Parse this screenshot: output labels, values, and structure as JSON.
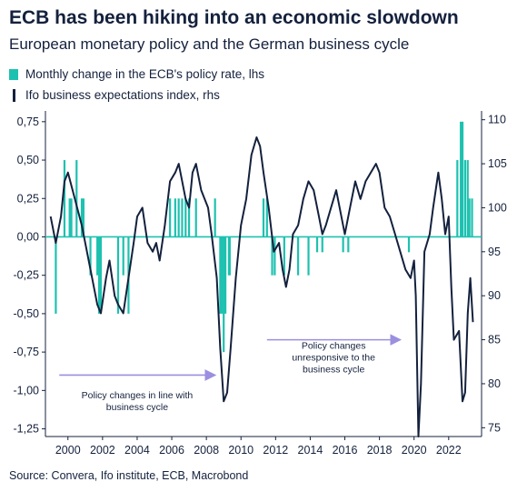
{
  "title": "ECB has been hiking into an economic slowdown",
  "subtitle": "European monetary policy and the German business cycle",
  "source": "Source: Convera, Ifo institute, ECB, Macrobond",
  "colors": {
    "bar": "#1ec1b0",
    "line": "#14213d",
    "arrow": "#9b8fe0"
  },
  "chart_data": {
    "type": "bar+line",
    "legend_placement": "top-left",
    "grid": false,
    "series": [
      {
        "name": "Monthly change in the ECB's policy rate, lhs",
        "type": "bar",
        "axis": "left",
        "points": [
          [
            1999.3,
            -0.5
          ],
          [
            1999.8,
            0.5
          ],
          [
            2000.1,
            0.25
          ],
          [
            2000.2,
            0.25
          ],
          [
            2000.5,
            0.5
          ],
          [
            2000.8,
            0.25
          ],
          [
            2000.9,
            0.25
          ],
          [
            2001.3,
            -0.25
          ],
          [
            2001.7,
            -0.25
          ],
          [
            2001.8,
            -0.5
          ],
          [
            2001.9,
            -0.5
          ],
          [
            2002.9,
            -0.5
          ],
          [
            2003.2,
            -0.25
          ],
          [
            2003.5,
            -0.5
          ],
          [
            2005.9,
            0.25
          ],
          [
            2006.2,
            0.25
          ],
          [
            2006.4,
            0.25
          ],
          [
            2006.6,
            0.25
          ],
          [
            2006.8,
            0.25
          ],
          [
            2007.0,
            0.25
          ],
          [
            2007.4,
            0.25
          ],
          [
            2008.5,
            0.25
          ],
          [
            2008.8,
            -0.5
          ],
          [
            2008.9,
            -0.5
          ],
          [
            2009.0,
            -0.75
          ],
          [
            2009.1,
            -0.5
          ],
          [
            2009.3,
            -0.25
          ],
          [
            2009.35,
            -0.25
          ],
          [
            2011.3,
            0.25
          ],
          [
            2011.5,
            0.25
          ],
          [
            2011.8,
            -0.25
          ],
          [
            2011.95,
            -0.25
          ],
          [
            2012.5,
            -0.25
          ],
          [
            2013.3,
            -0.25
          ],
          [
            2013.9,
            -0.25
          ],
          [
            2014.4,
            -0.1
          ],
          [
            2014.7,
            -0.1
          ],
          [
            2015.9,
            -0.1
          ],
          [
            2016.2,
            -0.1
          ],
          [
            2019.7,
            -0.1
          ],
          [
            2022.5,
            0.5
          ],
          [
            2022.7,
            0.75
          ],
          [
            2022.8,
            0.75
          ],
          [
            2022.95,
            0.5
          ],
          [
            2023.1,
            0.5
          ],
          [
            2023.2,
            0.25
          ],
          [
            2023.35,
            0.25
          ]
        ]
      },
      {
        "name": "Ifo business expectations index, rhs",
        "type": "line",
        "axis": "right",
        "points": [
          [
            1999.0,
            99
          ],
          [
            1999.3,
            96
          ],
          [
            1999.6,
            99
          ],
          [
            1999.8,
            103
          ],
          [
            2000.0,
            104
          ],
          [
            2000.4,
            101
          ],
          [
            2000.8,
            98
          ],
          [
            2001.0,
            96
          ],
          [
            2001.4,
            92
          ],
          [
            2001.7,
            89
          ],
          [
            2001.9,
            88
          ],
          [
            2002.2,
            92
          ],
          [
            2002.4,
            94
          ],
          [
            2002.7,
            90
          ],
          [
            2002.9,
            89
          ],
          [
            2003.2,
            88
          ],
          [
            2003.5,
            92
          ],
          [
            2003.8,
            96
          ],
          [
            2004.0,
            99
          ],
          [
            2004.3,
            100
          ],
          [
            2004.6,
            96
          ],
          [
            2004.9,
            95
          ],
          [
            2005.1,
            96
          ],
          [
            2005.3,
            94
          ],
          [
            2005.6,
            98
          ],
          [
            2005.9,
            103
          ],
          [
            2006.2,
            104
          ],
          [
            2006.4,
            105
          ],
          [
            2006.6,
            103
          ],
          [
            2006.8,
            101
          ],
          [
            2007.0,
            100
          ],
          [
            2007.2,
            104
          ],
          [
            2007.4,
            105
          ],
          [
            2007.7,
            102
          ],
          [
            2007.9,
            101
          ],
          [
            2008.1,
            100
          ],
          [
            2008.3,
            97
          ],
          [
            2008.6,
            92
          ],
          [
            2008.8,
            84
          ],
          [
            2009.0,
            78
          ],
          [
            2009.2,
            79
          ],
          [
            2009.4,
            84
          ],
          [
            2009.7,
            92
          ],
          [
            2010.0,
            98
          ],
          [
            2010.3,
            101
          ],
          [
            2010.6,
            106
          ],
          [
            2010.9,
            108
          ],
          [
            2011.1,
            107
          ],
          [
            2011.3,
            104
          ],
          [
            2011.6,
            100
          ],
          [
            2011.9,
            95
          ],
          [
            2012.2,
            96
          ],
          [
            2012.4,
            93
          ],
          [
            2012.6,
            91
          ],
          [
            2012.8,
            93
          ],
          [
            2013.0,
            97
          ],
          [
            2013.3,
            98
          ],
          [
            2013.6,
            101
          ],
          [
            2013.9,
            103
          ],
          [
            2014.2,
            102
          ],
          [
            2014.5,
            99
          ],
          [
            2014.7,
            97
          ],
          [
            2014.9,
            98
          ],
          [
            2015.2,
            100
          ],
          [
            2015.5,
            102
          ],
          [
            2015.8,
            99
          ],
          [
            2016.0,
            97
          ],
          [
            2016.3,
            100
          ],
          [
            2016.6,
            103
          ],
          [
            2016.9,
            101
          ],
          [
            2017.2,
            103
          ],
          [
            2017.5,
            104
          ],
          [
            2017.8,
            105
          ],
          [
            2018.0,
            104
          ],
          [
            2018.3,
            100
          ],
          [
            2018.6,
            99
          ],
          [
            2018.9,
            97
          ],
          [
            2019.2,
            95
          ],
          [
            2019.5,
            93
          ],
          [
            2019.8,
            92
          ],
          [
            2020.0,
            94
          ],
          [
            2020.1,
            90
          ],
          [
            2020.25,
            74
          ],
          [
            2020.4,
            80
          ],
          [
            2020.6,
            95
          ],
          [
            2020.9,
            97
          ],
          [
            2021.1,
            100
          ],
          [
            2021.4,
            104
          ],
          [
            2021.6,
            101
          ],
          [
            2021.8,
            97
          ],
          [
            2022.0,
            99
          ],
          [
            2022.15,
            91
          ],
          [
            2022.3,
            85
          ],
          [
            2022.6,
            86
          ],
          [
            2022.8,
            78
          ],
          [
            2022.95,
            79
          ],
          [
            2023.1,
            88
          ],
          [
            2023.25,
            92
          ],
          [
            2023.4,
            87
          ]
        ]
      }
    ],
    "xlim": [
      1998.7,
      2023.9
    ],
    "ylim_left": [
      -1.3,
      0.82
    ],
    "ylim_right": [
      74,
      111
    ],
    "x_ticks": [
      2000,
      2002,
      2004,
      2006,
      2008,
      2010,
      2012,
      2014,
      2016,
      2018,
      2020,
      2022
    ],
    "left_ticks": [
      0.75,
      0.5,
      0.25,
      0.0,
      -0.25,
      -0.5,
      -0.75,
      -1.0,
      -1.25
    ],
    "left_tick_labels": [
      "0,75",
      "0,50",
      "0,25",
      "0,00",
      "-0,25",
      "-0,50",
      "-0,75",
      "-1,00",
      "-1,25"
    ],
    "right_ticks": [
      110,
      105,
      100,
      95,
      90,
      85,
      80,
      75
    ],
    "annotations": [
      {
        "text_lines": [
          "Policy changes in line with",
          "business cycle"
        ],
        "arrow_x": [
          1999.5,
          2008.5
        ],
        "left_value": -0.9,
        "text_left_value": -1.05
      },
      {
        "text_lines": [
          "Policy changes",
          "unresponsive to the",
          "business cycle"
        ],
        "arrow_x": [
          2011.5,
          2019.2
        ],
        "left_value": -0.67,
        "text_left_value": -0.82
      }
    ]
  }
}
